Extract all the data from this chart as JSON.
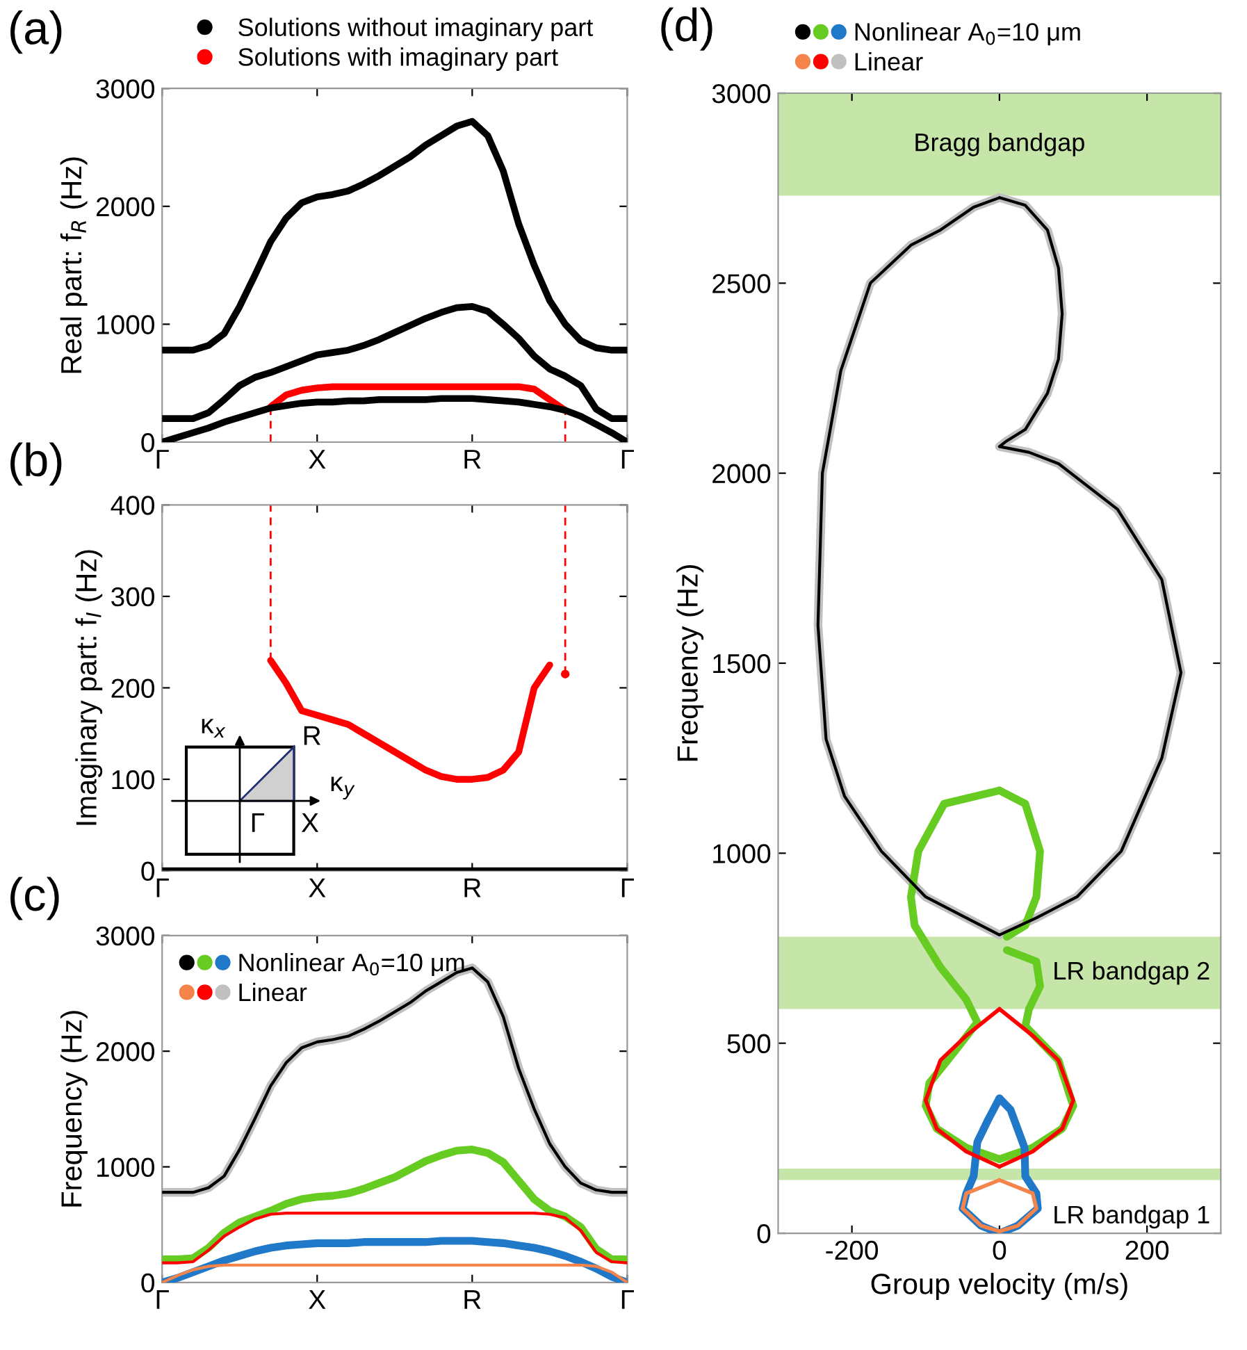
{
  "chart_data": [
    {
      "type": "line",
      "ylabel": "Real part: f$_{R}$ (Hz)",
      "ylim": [
        0,
        3000
      ],
      "categories": [
        "Γ",
        null,
        null,
        null,
        null,
        null,
        null,
        null,
        null,
        null,
        "X",
        null,
        null,
        null,
        null,
        null,
        null,
        null,
        null,
        null,
        "R",
        null,
        null,
        null,
        null,
        null,
        null,
        null,
        null,
        null,
        "Γ"
      ],
      "yticks": [
        0,
        1000,
        2000,
        3000
      ],
      "legend": "top",
      "annotations": [
        "(a)"
      ],
      "series": [
        {
          "name": "Solutions without imaginary part",
          "color": "#000000",
          "values": [
            780,
            780,
            780,
            820,
            920,
            1150,
            1420,
            1700,
            1900,
            2030,
            2080,
            2100,
            2130,
            2190,
            2260,
            2340,
            2420,
            2520,
            2600,
            2680,
            2720,
            2600,
            2300,
            1850,
            1500,
            1200,
            1000,
            860,
            800,
            780,
            780
          ]
        },
        {
          "name": "Solutions with imaginary part",
          "color": "#ff0000",
          "values": [
            null,
            null,
            null,
            null,
            null,
            null,
            null,
            300,
            400,
            440,
            460,
            470,
            470,
            470,
            470,
            470,
            470,
            470,
            470,
            470,
            470,
            470,
            470,
            470,
            450,
            360,
            270,
            null,
            null,
            null,
            null
          ]
        },
        {
          "color": "#000000",
          "values": [
            200,
            200,
            200,
            250,
            360,
            480,
            550,
            590,
            640,
            690,
            740,
            760,
            780,
            820,
            870,
            930,
            990,
            1050,
            1100,
            1140,
            1150,
            1110,
            1000,
            880,
            730,
            620,
            560,
            480,
            280,
            200,
            200
          ]
        },
        {
          "color": "#000000",
          "values": [
            0,
            40,
            80,
            120,
            170,
            210,
            250,
            290,
            310,
            330,
            340,
            340,
            350,
            350,
            360,
            360,
            360,
            360,
            370,
            370,
            370,
            360,
            350,
            340,
            320,
            300,
            270,
            220,
            150,
            80,
            0
          ]
        }
      ]
    },
    {
      "type": "line",
      "ylabel": "Imaginary part: f$_{I}$ (Hz)",
      "ylim": [
        0,
        400
      ],
      "categories": [
        "Γ",
        null,
        null,
        null,
        null,
        null,
        null,
        null,
        null,
        null,
        "X",
        null,
        null,
        null,
        null,
        null,
        null,
        null,
        null,
        null,
        "R",
        null,
        null,
        null,
        null,
        null,
        null,
        null,
        null,
        null,
        "Γ"
      ],
      "yticks": [
        0,
        100,
        200,
        300,
        400
      ],
      "annotations": [
        "(b)",
        "κ$_{x}$",
        "R",
        "κ$_{y}$",
        "Γ",
        "X"
      ],
      "series": [
        {
          "color": "#000000",
          "values": [
            0,
            0,
            0,
            0,
            0,
            0,
            0,
            0,
            0,
            0,
            0,
            0,
            0,
            0,
            0,
            0,
            0,
            0,
            0,
            0,
            0,
            0,
            0,
            0,
            0,
            0,
            0,
            0,
            0,
            0,
            0
          ]
        },
        {
          "color": "#ff0000",
          "values": [
            null,
            null,
            null,
            null,
            null,
            null,
            null,
            230,
            205,
            175,
            170,
            165,
            160,
            150,
            140,
            130,
            120,
            110,
            103,
            100,
            100,
            102,
            110,
            130,
            200,
            225,
            null,
            null,
            null,
            null,
            null
          ]
        },
        {
          "type": "scatter",
          "color": "#ff0000",
          "values": [
            null,
            null,
            null,
            null,
            null,
            null,
            null,
            null,
            null,
            null,
            null,
            null,
            null,
            null,
            null,
            null,
            null,
            null,
            null,
            null,
            null,
            null,
            null,
            null,
            null,
            null,
            215,
            null,
            null,
            null,
            null
          ]
        }
      ]
    },
    {
      "type": "line",
      "ylabel": "Frequency (Hz)",
      "ylim": [
        0,
        3000
      ],
      "categories": [
        "Γ",
        null,
        null,
        null,
        null,
        null,
        null,
        null,
        null,
        null,
        "X",
        null,
        null,
        null,
        null,
        null,
        null,
        null,
        null,
        null,
        "R",
        null,
        null,
        null,
        null,
        null,
        null,
        null,
        null,
        null,
        "Γ"
      ],
      "yticks": [
        0,
        1000,
        2000,
        3000
      ],
      "legend": "top left",
      "annotations": [
        "(c)"
      ],
      "series": [
        {
          "color": "#000000",
          "values": [
            780,
            780,
            780,
            820,
            920,
            1150,
            1420,
            1700,
            1900,
            2030,
            2080,
            2100,
            2130,
            2190,
            2260,
            2340,
            2420,
            2520,
            2600,
            2680,
            2720,
            2600,
            2300,
            1850,
            1500,
            1200,
            1000,
            860,
            800,
            780,
            780
          ]
        },
        {
          "color": "#66cc22",
          "values": [
            200,
            200,
            210,
            300,
            430,
            520,
            570,
            620,
            680,
            720,
            740,
            750,
            770,
            810,
            860,
            910,
            980,
            1050,
            1100,
            1140,
            1150,
            1120,
            1040,
            880,
            720,
            620,
            570,
            480,
            290,
            200,
            200
          ]
        },
        {
          "name": "Nonlinear A$_{0}$=10 μm",
          "color": "#1f78c8",
          "values": [
            0,
            40,
            90,
            140,
            190,
            230,
            270,
            300,
            320,
            330,
            340,
            340,
            340,
            350,
            350,
            350,
            350,
            350,
            360,
            360,
            360,
            350,
            340,
            320,
            300,
            270,
            230,
            180,
            120,
            50,
            0
          ]
        },
        {
          "color": "#f4844a",
          "values": [
            0,
            60,
            110,
            140,
            150,
            150,
            150,
            150,
            150,
            150,
            150,
            150,
            150,
            150,
            150,
            150,
            150,
            150,
            150,
            150,
            150,
            150,
            150,
            150,
            150,
            150,
            150,
            150,
            140,
            90,
            0
          ]
        },
        {
          "color": "#ff0000",
          "values": [
            170,
            170,
            180,
            280,
            400,
            480,
            550,
            590,
            600,
            600,
            600,
            600,
            600,
            600,
            600,
            600,
            600,
            600,
            600,
            600,
            600,
            600,
            600,
            600,
            600,
            590,
            560,
            450,
            260,
            180,
            170
          ]
        },
        {
          "name": "Linear",
          "color": "#c0c0c0",
          "values": [
            780,
            780,
            780,
            820,
            920,
            1150,
            1420,
            1700,
            1900,
            2030,
            2080,
            2100,
            2130,
            2190,
            2260,
            2340,
            2420,
            2520,
            2600,
            2680,
            2720,
            2600,
            2300,
            1850,
            1500,
            1200,
            1000,
            860,
            800,
            780,
            780
          ]
        }
      ]
    },
    {
      "type": "line",
      "xlabel": "Group velocity (m/s)",
      "ylabel": "Frequency (Hz)",
      "xlim": [
        -300,
        300
      ],
      "ylim": [
        0,
        3000
      ],
      "xticks": [
        -200,
        0,
        200
      ],
      "yticks": [
        0,
        500,
        1000,
        1500,
        2000,
        2500,
        3000
      ],
      "legend": "top",
      "annotations": [
        "(d)"
      ],
      "bands": [
        {
          "axis": "y",
          "from": 2730,
          "to": 3000,
          "label": "Bragg bandgap",
          "color": "#c6e5a8"
        },
        {
          "axis": "y",
          "from": 590,
          "to": 780,
          "label": "LR bandgap 2",
          "color": "#c6e5a8"
        },
        {
          "axis": "y",
          "from": 140,
          "to": 170,
          "label": "LR bandgap 1",
          "color": "#c6e5a8"
        }
      ],
      "series": [
        {
          "color": "#000000",
          "x": [
            0,
            -50,
            -100,
            -160,
            -210,
            -235,
            -246,
            -240,
            -215,
            -175,
            -120,
            -80,
            -35,
            0
          ],
          "values": [
            785,
            835,
            885,
            1005,
            1150,
            1300,
            1600,
            2000,
            2270,
            2500,
            2600,
            2640,
            2700,
            2725
          ]
        },
        {
          "color": "#000000",
          "x": [
            0,
            35,
            65,
            80,
            85,
            80,
            65,
            35,
            10,
            0,
            40,
            80,
            160,
            220,
            246,
            220,
            165,
            105,
            50,
            0
          ],
          "values": [
            2725,
            2705,
            2640,
            2540,
            2420,
            2300,
            2210,
            2115,
            2085,
            2070,
            2055,
            2025,
            1905,
            1720,
            1475,
            1250,
            1005,
            885,
            830,
            785
          ]
        },
        {
          "color": "#66cc22",
          "x": [
            0,
            -75,
            -110,
            -120,
            -115,
            -80,
            -45,
            -30,
            -60,
            -95,
            -100,
            -85,
            -45,
            0
          ],
          "values": [
            1165,
            1130,
            1005,
            885,
            810,
            700,
            615,
            555,
            480,
            395,
            335,
            275,
            225,
            195
          ]
        },
        {
          "color": "#66cc22",
          "x": [
            0,
            45,
            85,
            100,
            80,
            35,
            40,
            55,
            50,
            10
          ],
          "values": [
            195,
            225,
            275,
            335,
            455,
            545,
            590,
            650,
            715,
            745
          ]
        },
        {
          "color": "#66cc22",
          "x": [
            10,
            35,
            50,
            55,
            35,
            0
          ],
          "values": [
            780,
            810,
            885,
            1005,
            1130,
            1165
          ]
        },
        {
          "color": "#1f78c8",
          "x": [
            0,
            -15,
            -30,
            -35,
            -45,
            -50,
            -25,
            0
          ],
          "values": [
            355,
            300,
            240,
            150,
            105,
            65,
            20,
            0
          ]
        },
        {
          "name": "Nonlinear A$_{0}$=10 μm",
          "color": "#1f78c8",
          "x": [
            0,
            25,
            52,
            50,
            35,
            34,
            15,
            0
          ],
          "values": [
            0,
            20,
            65,
            105,
            150,
            225,
            325,
            355
          ]
        },
        {
          "color": "#f4844a",
          "x": [
            0,
            -45,
            -50,
            -25,
            0
          ],
          "values": [
            140,
            105,
            65,
            20,
            5
          ]
        },
        {
          "color": "#f4844a",
          "x": [
            0,
            25,
            50,
            45,
            0
          ],
          "values": [
            5,
            20,
            65,
            105,
            140
          ]
        },
        {
          "color": "#ff0000",
          "x": [
            0,
            -45,
            -80,
            -100,
            -85,
            -45,
            0
          ],
          "values": [
            590,
            520,
            455,
            350,
            275,
            215,
            175
          ]
        },
        {
          "color": "#ff0000",
          "x": [
            0,
            45,
            85,
            100,
            80,
            45,
            0
          ],
          "values": [
            175,
            215,
            275,
            350,
            455,
            520,
            590
          ]
        },
        {
          "color": "#c0c0c0",
          "x": [
            0,
            -50,
            -100,
            -160,
            -210,
            -235,
            -246,
            -240,
            -215,
            -175,
            -120,
            -80,
            -35,
            0
          ],
          "values": [
            785,
            835,
            885,
            1005,
            1150,
            1300,
            1600,
            2000,
            2270,
            2500,
            2600,
            2640,
            2700,
            2725
          ]
        },
        {
          "name": "Linear",
          "color": "#c0c0c0",
          "x": [
            0,
            35,
            65,
            80,
            85,
            80,
            65,
            35,
            10,
            0,
            40,
            80,
            160,
            220,
            246,
            220,
            165,
            105,
            50,
            0
          ],
          "values": [
            2725,
            2705,
            2640,
            2540,
            2420,
            2300,
            2210,
            2115,
            2085,
            2070,
            2055,
            2025,
            1905,
            1720,
            1475,
            1250,
            1005,
            885,
            830,
            785
          ]
        }
      ]
    }
  ]
}
